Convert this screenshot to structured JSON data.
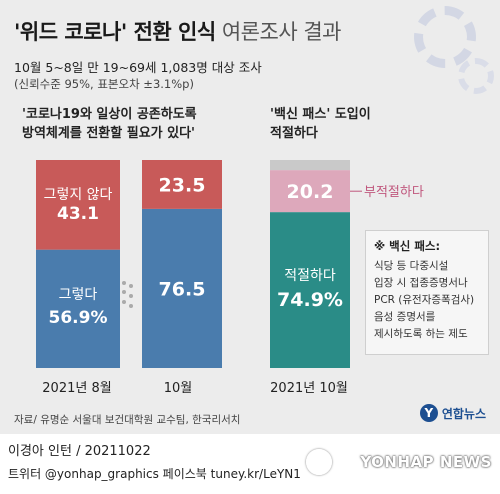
{
  "header": {
    "title_strong": "'위드 코로나' 전환 인식",
    "title_light": "여론조사 결과",
    "subtitle1": "10월 5~8일 만 19~69세 1,083명 대상 조사",
    "subtitle2": "(신뢰수준 95%, 표본오차 ±3.1%p)"
  },
  "questions": {
    "left_line1": "'코로나19와 일상이 공존하도록",
    "left_line2": "방역체계를 전환할 필요가 있다'",
    "right_line1": "'백신 패스' 도입이",
    "right_line2": "적절하다"
  },
  "note": {
    "title": "※ 백신 패스:",
    "lines": [
      "식당 등 다중시설",
      "입장 시 접종증명서나",
      "PCR (유전자증폭검사)",
      "음성 증명서를",
      "제시하도록 하는 제도"
    ]
  },
  "x_labels": [
    "2021년 8월",
    "10월",
    "2021년 10월"
  ],
  "source": "자료/ 유명순 서울대 보건대학원 교수팀, 한국리서치",
  "logo": "연합뉴스",
  "credit": "이경아 인턴 / 20211022",
  "social": "트위터 @yonhap_graphics  페이스북 tuney.kr/LeYN1",
  "watermark": "YONHAP NEWS",
  "colors": {
    "blue": "#4a7cad",
    "red": "#c85a59",
    "teal": "#2a8c87",
    "pink": "#dda8bb",
    "gray": "#c9c9c9"
  },
  "chart_data": [
    {
      "type": "bar",
      "stacked": true,
      "categories": [
        "2021년 8월",
        "10월"
      ],
      "series": [
        {
          "name": "그렇다",
          "values": [
            56.9,
            76.5
          ],
          "labels": [
            "56.9%",
            "76.5"
          ]
        },
        {
          "name": "그렇지 않다",
          "values": [
            43.1,
            23.5
          ],
          "labels": [
            "43.1",
            "23.5"
          ]
        }
      ],
      "ylim": [
        0,
        100
      ]
    },
    {
      "type": "bar",
      "stacked": true,
      "categories": [
        "2021년 10월"
      ],
      "series": [
        {
          "name": "적절하다",
          "values": [
            74.9
          ],
          "labels": [
            "74.9%"
          ]
        },
        {
          "name": "부적절하다",
          "values": [
            20.2
          ],
          "labels": [
            "20.2"
          ]
        }
      ],
      "ylim": [
        0,
        100
      ]
    }
  ]
}
